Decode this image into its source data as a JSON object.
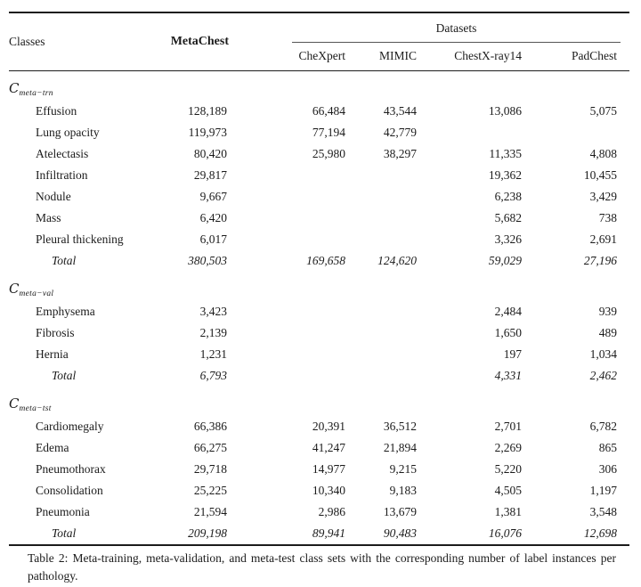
{
  "table": {
    "header": {
      "classes": "Classes",
      "metachest": "MetaChest",
      "datasets_group": "Datasets",
      "dataset_columns": [
        "CheXpert",
        "MIMIC",
        "ChestX-ray14",
        "PadChest"
      ]
    },
    "sections": [
      {
        "set_label": "C",
        "set_subscript": "meta−trn",
        "rows": [
          {
            "class": "Effusion",
            "values": [
              "128,189",
              "66,484",
              "43,544",
              "13,086",
              "5,075"
            ]
          },
          {
            "class": "Lung opacity",
            "values": [
              "119,973",
              "77,194",
              "42,779",
              "",
              ""
            ]
          },
          {
            "class": "Atelectasis",
            "values": [
              "80,420",
              "25,980",
              "38,297",
              "11,335",
              "4,808"
            ]
          },
          {
            "class": "Infiltration",
            "values": [
              "29,817",
              "",
              "",
              "19,362",
              "10,455"
            ]
          },
          {
            "class": "Nodule",
            "values": [
              "9,667",
              "",
              "",
              "6,238",
              "3,429"
            ]
          },
          {
            "class": "Mass",
            "values": [
              "6,420",
              "",
              "",
              "5,682",
              "738"
            ]
          },
          {
            "class": "Pleural thickening",
            "values": [
              "6,017",
              "",
              "",
              "3,326",
              "2,691"
            ]
          }
        ],
        "total": {
          "label": "Total",
          "values": [
            "380,503",
            "169,658",
            "124,620",
            "59,029",
            "27,196"
          ]
        }
      },
      {
        "set_label": "C",
        "set_subscript": "meta−val",
        "rows": [
          {
            "class": "Emphysema",
            "values": [
              "3,423",
              "",
              "",
              "2,484",
              "939"
            ]
          },
          {
            "class": "Fibrosis",
            "values": [
              "2,139",
              "",
              "",
              "1,650",
              "489"
            ]
          },
          {
            "class": "Hernia",
            "values": [
              "1,231",
              "",
              "",
              "197",
              "1,034"
            ]
          }
        ],
        "total": {
          "label": "Total",
          "values": [
            "6,793",
            "",
            "",
            "4,331",
            "2,462"
          ]
        }
      },
      {
        "set_label": "C",
        "set_subscript": "meta−tst",
        "rows": [
          {
            "class": "Cardiomegaly",
            "values": [
              "66,386",
              "20,391",
              "36,512",
              "2,701",
              "6,782"
            ]
          },
          {
            "class": "Edema",
            "values": [
              "66,275",
              "41,247",
              "21,894",
              "2,269",
              "865"
            ]
          },
          {
            "class": "Pneumothorax",
            "values": [
              "29,718",
              "14,977",
              "9,215",
              "5,220",
              "306"
            ]
          },
          {
            "class": "Consolidation",
            "values": [
              "25,225",
              "10,340",
              "9,183",
              "4,505",
              "1,197"
            ]
          },
          {
            "class": "Pneumonia",
            "values": [
              "21,594",
              "2,986",
              "13,679",
              "1,381",
              "3,548"
            ]
          }
        ],
        "total": {
          "label": "Total",
          "values": [
            "209,198",
            "89,941",
            "90,483",
            "16,076",
            "12,698"
          ]
        }
      }
    ]
  },
  "caption": "Table 2: Meta-training, meta-validation, and meta-test class sets with the corresponding number of label instances per pathology."
}
